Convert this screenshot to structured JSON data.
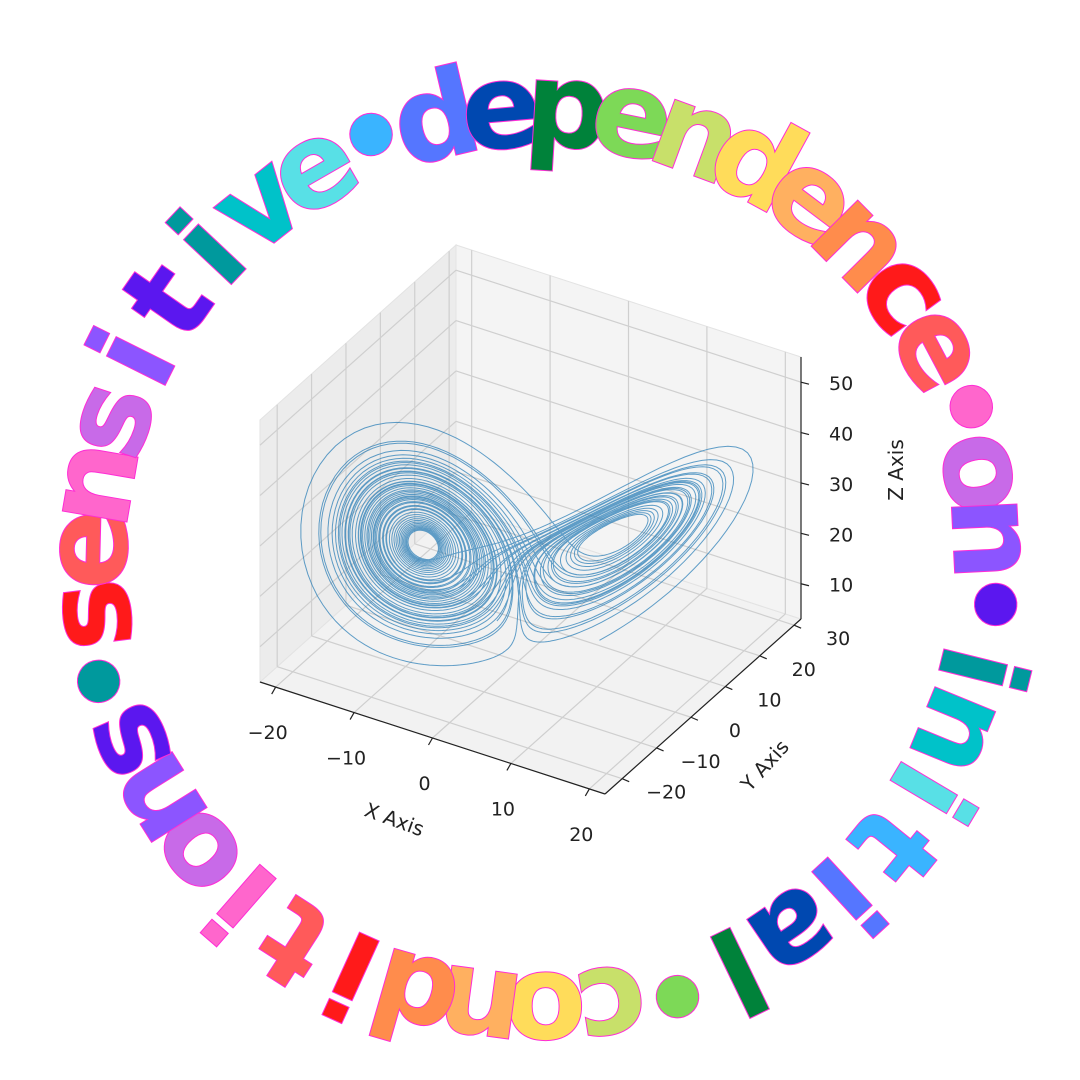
{
  "ring_text": "sensitive.dependence.on.initial.conditions.",
  "ring_colors": [
    "#ff1a1a",
    "#ff5a5a",
    "#ff66cc",
    "#c86ae8",
    "#8c55ff",
    "#5b17ef",
    "#00999d",
    "#00c2c9",
    "#58e0e6",
    "#3ab4ff",
    "#5576ff",
    "#0048b0",
    "#00823a",
    "#7dd957",
    "#c8e06a",
    "#ffdc5a",
    "#ffb060",
    "#ff8c4c"
  ],
  "chart_data": {
    "type": "line",
    "subtype": "3d-line",
    "series": [
      {
        "color": "#1f77b4"
      }
    ],
    "x_ticks": [
      "−20",
      "−10",
      "0",
      "10",
      "20"
    ],
    "y_ticks": [
      "−20",
      "−10",
      "0",
      "10",
      "20",
      "30"
    ],
    "z_ticks": [
      "10",
      "20",
      "30",
      "40",
      "50"
    ],
    "xlabel": "X Axis",
    "ylabel": "Y Axis",
    "zlabel": "Z Axis",
    "xlim": [
      -22,
      22
    ],
    "ylim": [
      -25,
      32
    ],
    "zlim": [
      3,
      55
    ],
    "grid": true,
    "attractor": {
      "sigma": 10,
      "rho": 28,
      "beta": 2.6667,
      "initial": [
        0,
        1,
        1.05
      ]
    }
  }
}
